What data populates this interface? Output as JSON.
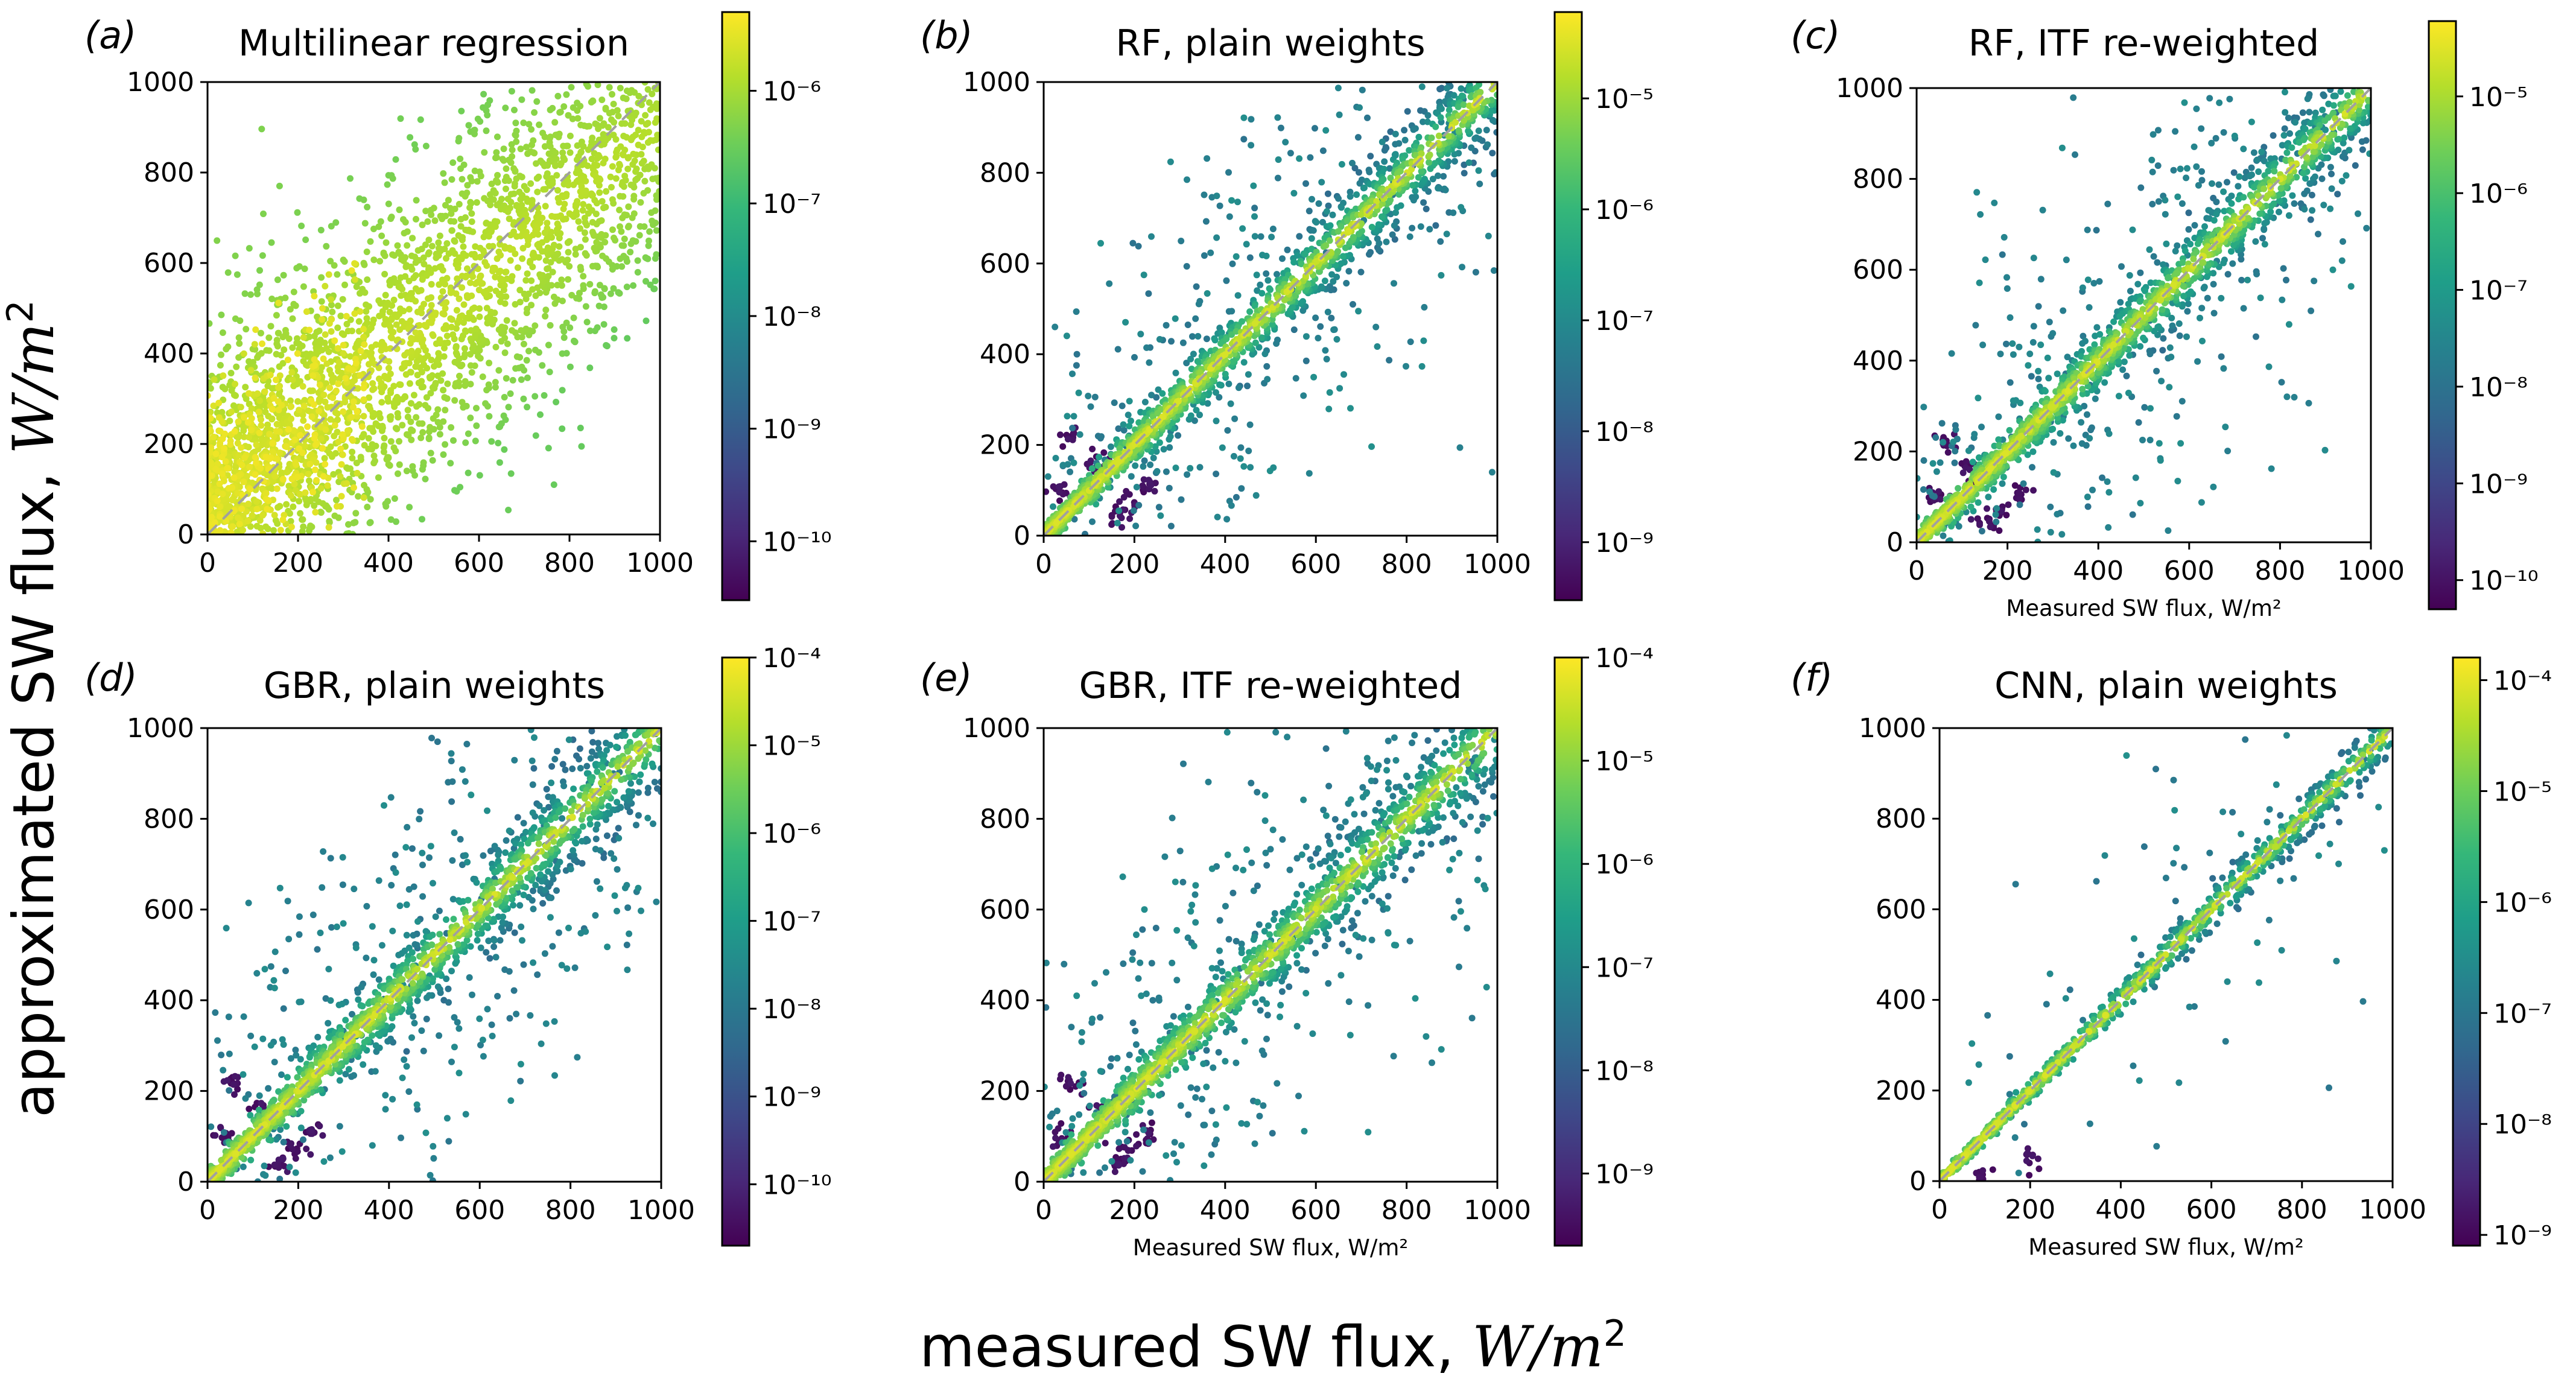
{
  "figure": {
    "global_xlabel": "measured SW flux, W/m²",
    "global_xlabel_text": "measured SW flux, ",
    "global_xlabel_unit": "W/m",
    "global_ylabel_text": "approximated SW flux, ",
    "global_ylabel_unit": "W/m",
    "unit_exponent": "2",
    "colormap": [
      "#440154",
      "#482878",
      "#3e4989",
      "#31688e",
      "#26828e",
      "#1f9e89",
      "#35b779",
      "#6ece58",
      "#b5de2b",
      "#fde725"
    ],
    "diagonal_color": "#a0a0a0"
  },
  "chart_data": [
    {
      "id": "a",
      "panel_label": "(a)",
      "title": "Multilinear regression",
      "type": "scatter",
      "xlabel": "",
      "ylabel": "",
      "xlim": [
        0,
        1000
      ],
      "ylim": [
        0,
        1000
      ],
      "xticks": [
        "0",
        "200",
        "400",
        "600",
        "800",
        "1000"
      ],
      "yticks": [
        "0",
        "200",
        "400",
        "600",
        "800",
        "1000"
      ],
      "reference_line": "y = x (dashed)",
      "spread": "wide, linear fit band",
      "colorbar": {
        "scale": "log",
        "range": [
          3e-11,
          5e-06
        ],
        "ticks": [
          "10⁻⁶",
          "10⁻⁷",
          "10⁻⁸",
          "10⁻⁹",
          "10⁻¹⁰"
        ]
      }
    },
    {
      "id": "b",
      "panel_label": "(b)",
      "title": "RF, plain weights",
      "type": "scatter",
      "xlabel": "",
      "ylabel": "",
      "xlim": [
        0,
        1000
      ],
      "ylim": [
        0,
        1000
      ],
      "xticks": [
        "0",
        "200",
        "400",
        "600",
        "800",
        "1000"
      ],
      "yticks": [
        "0",
        "200",
        "400",
        "600",
        "800",
        "1000"
      ],
      "reference_line": "y = x (dashed)",
      "spread": "moderate, concentrated near diagonal",
      "colorbar": {
        "scale": "log",
        "range": [
          3e-10,
          6e-05
        ],
        "ticks": [
          "10⁻⁵",
          "10⁻⁶",
          "10⁻⁷",
          "10⁻⁸",
          "10⁻⁹"
        ]
      }
    },
    {
      "id": "c",
      "panel_label": "(c)",
      "title": "RF, ITF re-weighted",
      "type": "scatter",
      "xlabel": "Measured SW flux, W/m²",
      "ylabel": "",
      "xlim": [
        0,
        1000
      ],
      "ylim": [
        0,
        1000
      ],
      "xticks": [
        "0",
        "200",
        "400",
        "600",
        "800",
        "1000"
      ],
      "yticks": [
        "0",
        "200",
        "400",
        "600",
        "800",
        "1000"
      ],
      "reference_line": "y = x (dashed)",
      "spread": "moderate, concentrated near diagonal",
      "colorbar": {
        "scale": "log",
        "range": [
          5e-11,
          6e-05
        ],
        "ticks": [
          "10⁻⁵",
          "10⁻⁶",
          "10⁻⁷",
          "10⁻⁸",
          "10⁻⁹",
          "10⁻¹⁰"
        ]
      }
    },
    {
      "id": "d",
      "panel_label": "(d)",
      "title": "GBR, plain weights",
      "type": "scatter",
      "xlabel": "",
      "ylabel": "",
      "xlim": [
        0,
        1000
      ],
      "ylim": [
        0,
        1000
      ],
      "xticks": [
        "0",
        "200",
        "400",
        "600",
        "800",
        "1000"
      ],
      "yticks": [
        "0",
        "200",
        "400",
        "600",
        "800",
        "1000"
      ],
      "reference_line": "y = x (dashed)",
      "spread": "moderate, concentrated near diagonal",
      "colorbar": {
        "scale": "log",
        "range": [
          2e-11,
          0.0001
        ],
        "ticks": [
          "10⁻⁴",
          "10⁻⁵",
          "10⁻⁶",
          "10⁻⁷",
          "10⁻⁸",
          "10⁻⁹",
          "10⁻¹⁰"
        ]
      }
    },
    {
      "id": "e",
      "panel_label": "(e)",
      "title": "GBR, ITF re-weighted",
      "type": "scatter",
      "xlabel": "Measured SW flux, W/m²",
      "ylabel": "",
      "xlim": [
        0,
        1000
      ],
      "ylim": [
        0,
        1000
      ],
      "xticks": [
        "0",
        "200",
        "400",
        "600",
        "800",
        "1000"
      ],
      "yticks": [
        "0",
        "200",
        "400",
        "600",
        "800",
        "1000"
      ],
      "reference_line": "y = x (dashed)",
      "spread": "moderate, concentrated near diagonal",
      "colorbar": {
        "scale": "log",
        "range": [
          2e-10,
          0.0001
        ],
        "ticks": [
          "10⁻⁴",
          "10⁻⁵",
          "10⁻⁶",
          "10⁻⁷",
          "10⁻⁸",
          "10⁻⁹"
        ]
      }
    },
    {
      "id": "f",
      "panel_label": "(f)",
      "title": "CNN, plain weights",
      "type": "scatter",
      "xlabel": "Measured SW flux, W/m²",
      "ylabel": "",
      "xlim": [
        0,
        1000
      ],
      "ylim": [
        0,
        1000
      ],
      "xticks": [
        "0",
        "200",
        "400",
        "600",
        "800",
        "1000"
      ],
      "yticks": [
        "0",
        "200",
        "400",
        "600",
        "800",
        "1000"
      ],
      "reference_line": "y = x (dashed)",
      "spread": "narrow, tight along diagonal",
      "colorbar": {
        "scale": "log",
        "range": [
          8e-10,
          0.00016
        ],
        "ticks": [
          "10⁻⁴",
          "10⁻⁵",
          "10⁻⁶",
          "10⁻⁷",
          "10⁻⁸",
          "10⁻⁹"
        ]
      }
    }
  ]
}
